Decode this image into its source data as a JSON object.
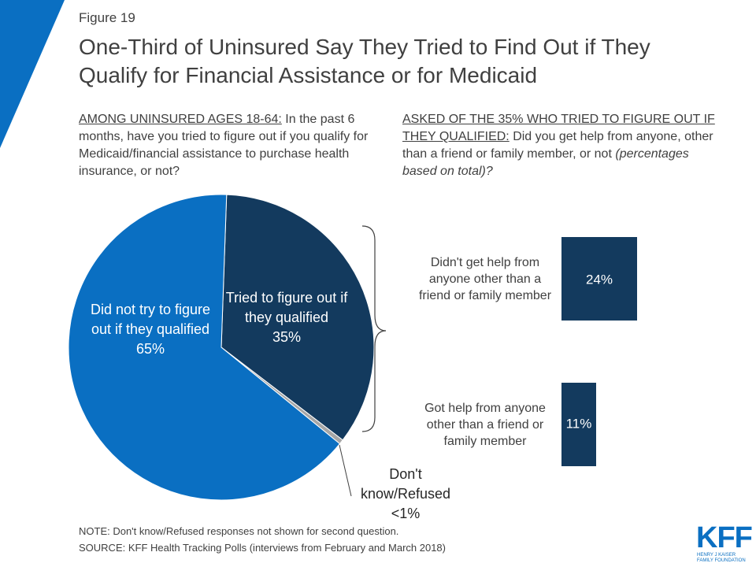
{
  "figure_label": "Figure 19",
  "title": "One-Third of Uninsured Say They Tried to Find Out if They Qualify for Financial Assistance or for Medicaid",
  "left_question": {
    "prefix": "AMONG UNINSURED AGES 18-64:",
    "text": "In the past 6 months, have you tried to figure out if you qualify for Medicaid/financial assistance to purchase health insurance, or not?"
  },
  "right_question": {
    "prefix": "ASKED OF THE 35% WHO TRIED TO FIGURE OUT IF THEY QUALIFIED:",
    "text": "Did you get help from anyone, other than a friend or family member, or not",
    "italic": "(percentages based on total)?"
  },
  "note": "NOTE: Don't know/Refused responses not shown for second question.",
  "source": "SOURCE: KFF Health Tracking Polls (interviews from February and March 2018)",
  "logo": {
    "name": "KFF",
    "subtitle": "HENRY J KAISER FAMILY FOUNDATION"
  },
  "chart_data": [
    {
      "type": "pie",
      "categories": [
        "Tried to figure out if they qualified",
        "Don't know/Refused",
        "Did not try to figure out if they qualified"
      ],
      "values": [
        35,
        0.5,
        65
      ],
      "value_labels": [
        "35%",
        "<1%",
        "65%"
      ],
      "colors": [
        "#133a5e",
        "#a6a6a6",
        "#0a6fc2"
      ]
    },
    {
      "type": "bar",
      "orientation": "horizontal",
      "categories": [
        "Didn't get help from anyone other than a friend or family member",
        "Got help from anyone other than a friend or family member"
      ],
      "values": [
        24,
        11
      ],
      "value_labels": [
        "24%",
        "11%"
      ],
      "color": "#133a5e"
    }
  ]
}
